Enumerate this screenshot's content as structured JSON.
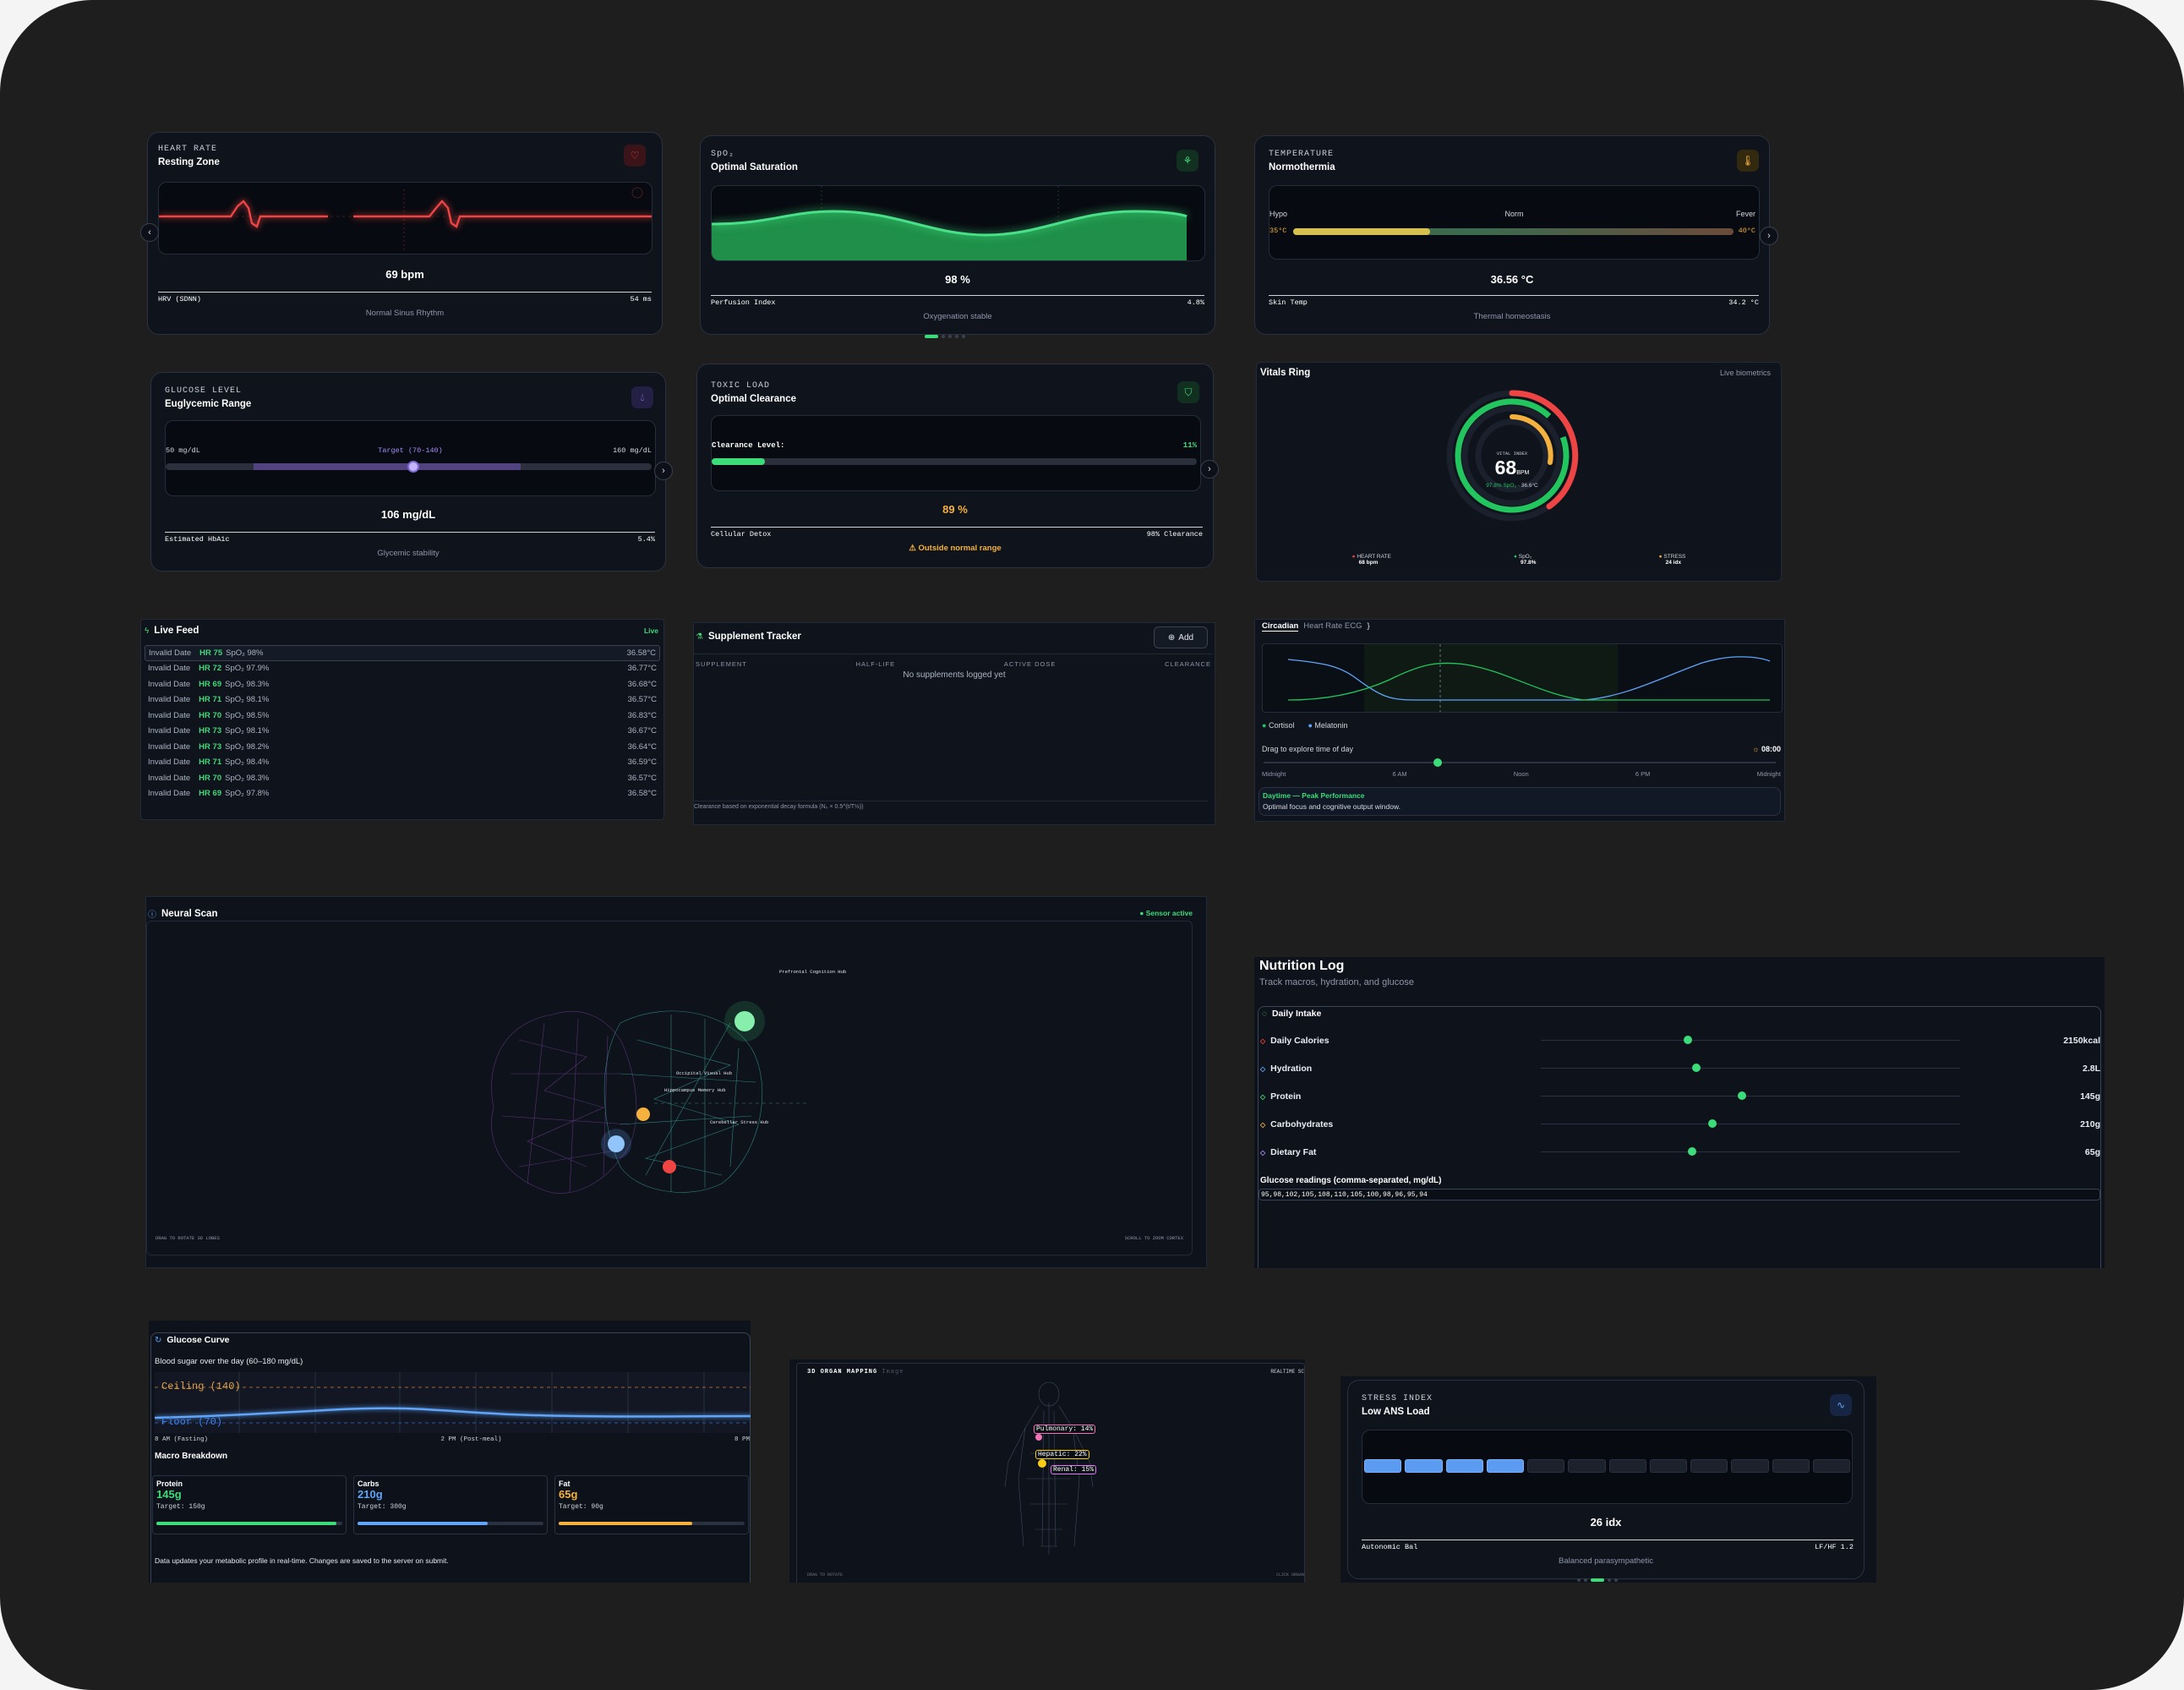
{
  "heart": {
    "tiny": "HEART RATE",
    "title": "Resting Zone",
    "value": "69 bpm",
    "foot_left": "HRV (SDNN)",
    "foot_right": "54 ms",
    "status": "Normal Sinus Rhythm",
    "icon": "heart-icon"
  },
  "spo2": {
    "tiny": "SpO₂",
    "title": "Optimal Saturation",
    "value": "98 %",
    "foot_left": "Perfusion Index",
    "foot_right": "4.8%",
    "status": "Oxygenation stable",
    "icon": "lungs-icon"
  },
  "temp": {
    "tiny": "TEMPERATURE",
    "title": "Normothermia",
    "hypo": "Hypo",
    "norm": "Norm",
    "fever": "Fever",
    "low": "35°C",
    "high": "40°C",
    "value": "36.56 °C",
    "foot_left": "Skin Temp",
    "foot_right": "34.2 °C",
    "status": "Thermal homeostasis",
    "icon": "thermometer-icon",
    "level": 0.31
  },
  "glucose": {
    "tiny": "GLUCOSE LEVEL",
    "title": "Euglycemic Range",
    "min": "50 mg/dL",
    "target": "Target (70-140)",
    "max": "160 mg/dL",
    "value": "106 mg/dL",
    "foot_left": "Estimated HbA1c",
    "foot_right": "5.4%",
    "status": "Glycemic stability",
    "icon": "drop-icon",
    "level": 0.51
  },
  "toxic": {
    "tiny": "TOXIC LOAD",
    "title": "Optimal Clearance",
    "label": "Clearance Level:",
    "pct": "11%",
    "value": "89 %",
    "foot_left": "Cellular Detox",
    "foot_right": "98% Clearance",
    "warning": "Outside normal range",
    "icon": "shield-icon",
    "level": 0.11
  },
  "ring": {
    "title": "Vitals Ring",
    "tag": "Live biometrics",
    "center_label": "VITAL INDEX",
    "center_value": "68",
    "center_unit": "BPM",
    "center_spo2": "97.8% SpO₂",
    "center_temp": "36.6°C",
    "legend": [
      {
        "label": "HEART RATE",
        "value": "68 bpm",
        "color": "#ef4444"
      },
      {
        "label": "SpO₂",
        "value": "97.8%",
        "color": "#22c55e"
      },
      {
        "label": "STRESS",
        "value": "24 idx",
        "color": "#f5b13d"
      }
    ]
  },
  "feed": {
    "title": "Live Feed",
    "tag": "Live",
    "rows": [
      {
        "date": "Invalid Date",
        "hr": "HR 75",
        "spo2": "SpO₂ 98%",
        "temp": "36.58°C"
      },
      {
        "date": "Invalid Date",
        "hr": "HR 72",
        "spo2": "SpO₂ 97.9%",
        "temp": "36.77°C"
      },
      {
        "date": "Invalid Date",
        "hr": "HR 69",
        "spo2": "SpO₂ 98.3%",
        "temp": "36.68°C"
      },
      {
        "date": "Invalid Date",
        "hr": "HR 71",
        "spo2": "SpO₂ 98.1%",
        "temp": "36.57°C"
      },
      {
        "date": "Invalid Date",
        "hr": "HR 70",
        "spo2": "SpO₂ 98.5%",
        "temp": "36.83°C"
      },
      {
        "date": "Invalid Date",
        "hr": "HR 73",
        "spo2": "SpO₂ 98.1%",
        "temp": "36.67°C"
      },
      {
        "date": "Invalid Date",
        "hr": "HR 73",
        "spo2": "SpO₂ 98.2%",
        "temp": "36.64°C"
      },
      {
        "date": "Invalid Date",
        "hr": "HR 71",
        "spo2": "SpO₂ 98.4%",
        "temp": "36.59°C"
      },
      {
        "date": "Invalid Date",
        "hr": "HR 70",
        "spo2": "SpO₂ 98.3%",
        "temp": "36.57°C"
      },
      {
        "date": "Invalid Date",
        "hr": "HR 69",
        "spo2": "SpO₂ 97.8%",
        "temp": "36.58°C"
      }
    ]
  },
  "supp": {
    "title": "Supplement Tracker",
    "add": "Add",
    "cols": [
      "SUPPLEMENT",
      "HALF-LIFE",
      "ACTIVE DOSE",
      "CLEARANCE"
    ],
    "empty": "No supplements logged yet",
    "foot": "Clearance based on exponential decay formula (N₀ × 0.5^(t/T½))"
  },
  "circ": {
    "tab1": "Circadian",
    "tab2": "Heart Rate ECG",
    "legend1": "Cortisol",
    "legend2": "Melatonin",
    "drag": "Drag to explore time of day",
    "time": "08:00",
    "ticks": [
      "Midnight",
      "6 AM",
      "Noon",
      "6 PM",
      "Midnight"
    ],
    "phase": "Daytime — Peak Performance",
    "phase_desc": "Optimal focus and cognitive output window.",
    "level": 0.34
  },
  "neural": {
    "title": "Neural Scan",
    "status": "Sensor active",
    "hint_left": "DRAG TO ROTATE 3D LOBES",
    "hint_right": "SCROLL TO ZOOM CORTEX",
    "nodes": [
      "Prefrontal Cognition Hub",
      "Occipital Visual Hub",
      "Hippocampus Memory Hub",
      "Cerebellar Stress Hub"
    ]
  },
  "nutrition": {
    "title": "Nutrition Log",
    "subtitle": "Track macros, hydration, and glucose",
    "section": "Daily Intake",
    "rows": [
      {
        "label": "Daily Calories",
        "value": "2150kcal",
        "level": 0.35,
        "color": "#ef4444"
      },
      {
        "label": "Hydration",
        "value": "2.8L",
        "level": 0.37,
        "color": "#60a5fa"
      },
      {
        "label": "Protein",
        "value": "145g",
        "level": 0.48,
        "color": "#3ddc7a"
      },
      {
        "label": "Carbohydrates",
        "value": "210g",
        "level": 0.41,
        "color": "#f5b13d"
      },
      {
        "label": "Dietary Fat",
        "value": "65g",
        "level": 0.36,
        "color": "#a78bfa"
      }
    ],
    "glucose_label": "Glucose readings (comma-separated, mg/dL)",
    "glucose_value": "95,98,102,105,108,110,105,100,98,96,95,94"
  },
  "gcurve": {
    "title": "Glucose Curve",
    "desc": "Blood sugar over the day (60–180 mg/dL)",
    "ceiling": "Ceiling (140)",
    "floor": "Floor (70)",
    "x": [
      "8 AM (Fasting)",
      "2 PM (Post-meal)",
      "8 PM"
    ],
    "macro_title": "Macro Breakdown",
    "macros": [
      {
        "name": "Protein",
        "value": "145g",
        "target": "Target: 150g",
        "level": 0.97,
        "color": "#3ddc7a"
      },
      {
        "name": "Carbs",
        "value": "210g",
        "target": "Target: 300g",
        "level": 0.7,
        "color": "#60a5fa"
      },
      {
        "name": "Fat",
        "value": "65g",
        "target": "Target: 90g",
        "level": 0.72,
        "color": "#f5b13d"
      }
    ],
    "note": "Data updates your metabolic profile in real-time. Changes are saved to the server on submit."
  },
  "organ": {
    "title": "3D ORGAN MAPPING",
    "title_faint": "Image",
    "tag": "REALTIME SC",
    "labels": [
      {
        "label": "Pulmonary: 14%",
        "color": "#f472b6"
      },
      {
        "label": "Hepatic: 22%",
        "color": "#facc15"
      },
      {
        "label": "Renal: 15%",
        "color": "#e879f9"
      }
    ],
    "hint_left": "DRAG TO ROTATE",
    "hint_right": "CLICK ORGAN"
  },
  "stress": {
    "tiny": "STRESS INDEX",
    "title": "Low ANS Load",
    "value": "26 idx",
    "foot_left": "Autonomic Bal",
    "foot_right": "LF/HF 1.2",
    "status": "Balanced parasympathetic",
    "icon": "pulse-icon",
    "active": 4,
    "total": 12
  }
}
